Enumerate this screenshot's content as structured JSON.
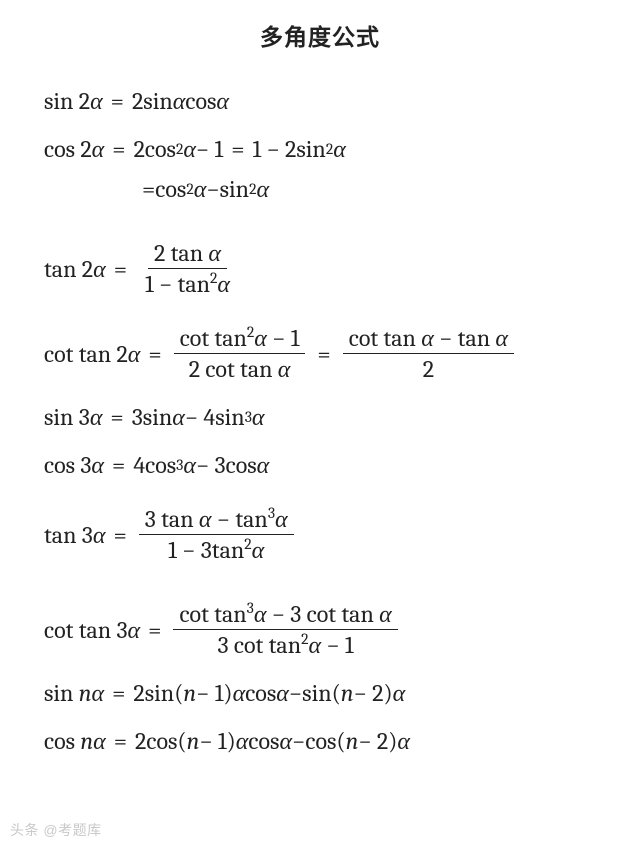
{
  "title": "多角度公式",
  "footer": "头条 @考题库",
  "colors": {
    "text": "#222222",
    "background": "#ffffff",
    "footer": "#c9c9c9"
  },
  "typography": {
    "title_fontsize": 23,
    "title_weight": 700,
    "title_family": "Microsoft YaHei",
    "body_fontsize": 24,
    "body_family": "Cambria"
  },
  "formulas": [
    {
      "lhs": "sin 2α",
      "rhs": "2 sin α cos α"
    },
    {
      "lhs": "cos 2α",
      "rhs": "2cos²α − 1 = 1 − 2sin²α",
      "cont": "= cos²α − sin²α"
    },
    {
      "lhs": "tan 2α",
      "rhs_frac": {
        "num": "2 tan α",
        "den": "1 − tan²α"
      }
    },
    {
      "lhs": "cot tan 2α",
      "rhs_frac": {
        "num": "cot tan²α − 1",
        "den": "2 cot tan α"
      },
      "rhs_frac2": {
        "num": "cot tan α − tan α",
        "den": "2"
      }
    },
    {
      "lhs": "sin 3α",
      "rhs": "3 sin α − 4sin³α"
    },
    {
      "lhs": "cos 3α",
      "rhs": "4cos³α − 3 cos α"
    },
    {
      "lhs": "tan 3α",
      "rhs_frac": {
        "num": "3 tan α − tan³α",
        "den": "1 − 3tan²α"
      }
    },
    {
      "lhs": "cot tan 3α",
      "rhs_frac": {
        "num": "cot tan³α − 3 cot tan α",
        "den": "3 cot tan²α − 1"
      }
    },
    {
      "lhs": "sin nα",
      "rhs": "2 sin(n − 1)α cos α − sin(n − 2)α"
    },
    {
      "lhs": "cos nα",
      "rhs": "2 cos(n − 1)α cos α − cos(n − 2)α"
    }
  ]
}
